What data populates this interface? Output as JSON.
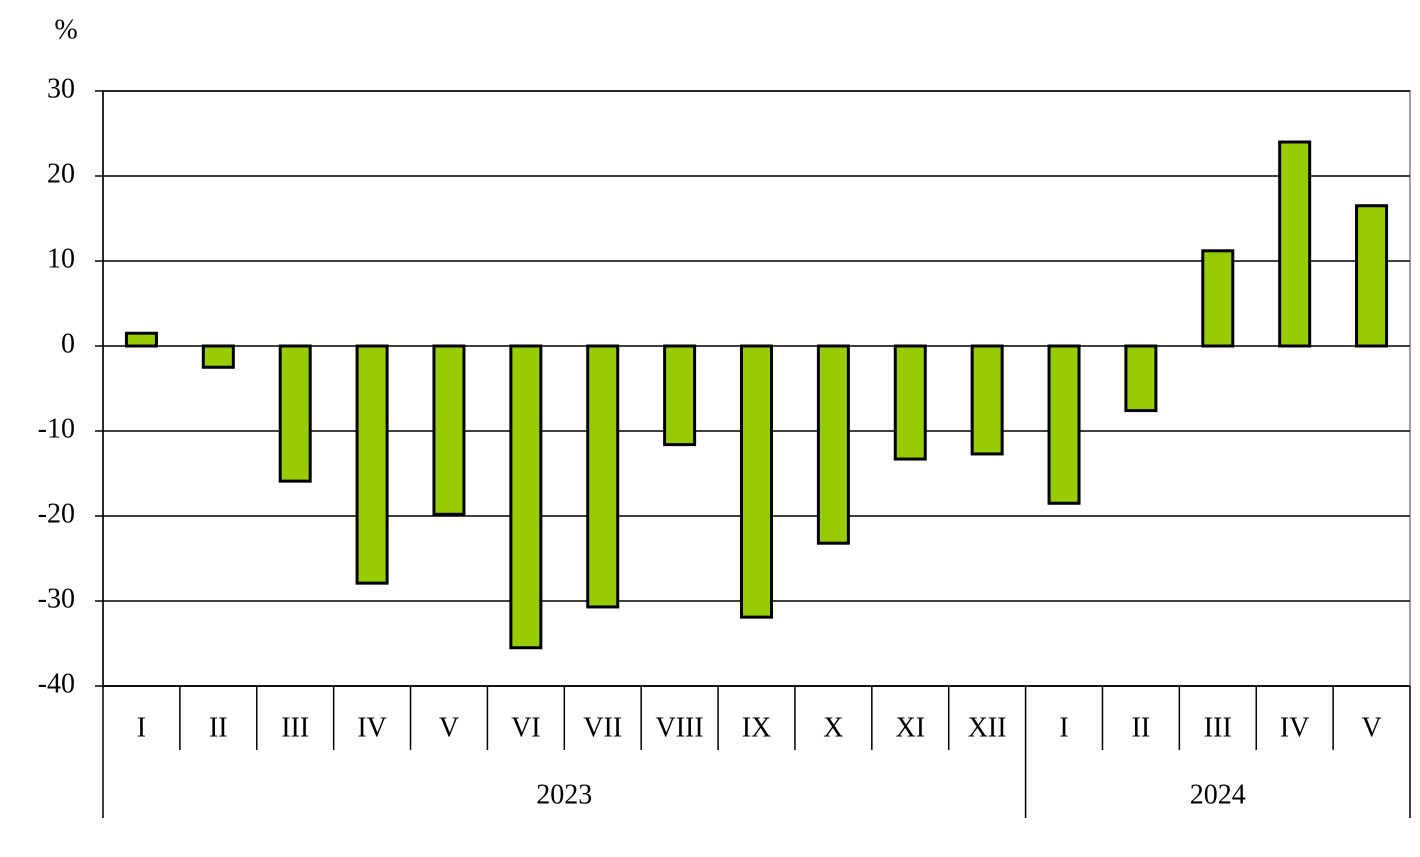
{
  "chart_data": {
    "type": "bar",
    "y_label": "%",
    "groups": [
      {
        "label": "2023",
        "categories": [
          "I",
          "II",
          "III",
          "IV",
          "V",
          "VI",
          "VII",
          "VIII",
          "IX",
          "X",
          "XI",
          "XII"
        ],
        "values": [
          1.5,
          -2.5,
          -15.9,
          -27.9,
          -19.8,
          -35.5,
          -30.7,
          -11.6,
          -31.9,
          -23.2,
          -13.3,
          -12.7
        ]
      },
      {
        "label": "2024",
        "categories": [
          "I",
          "II",
          "III",
          "IV",
          "V"
        ],
        "values": [
          -18.5,
          -7.6,
          11.2,
          24.0,
          16.5
        ]
      }
    ],
    "color": "#99cc00",
    "ylim": [
      -40,
      30
    ],
    "yticks": [
      -40,
      -30,
      -20,
      -10,
      0,
      10,
      20,
      30
    ],
    "grid": true
  }
}
